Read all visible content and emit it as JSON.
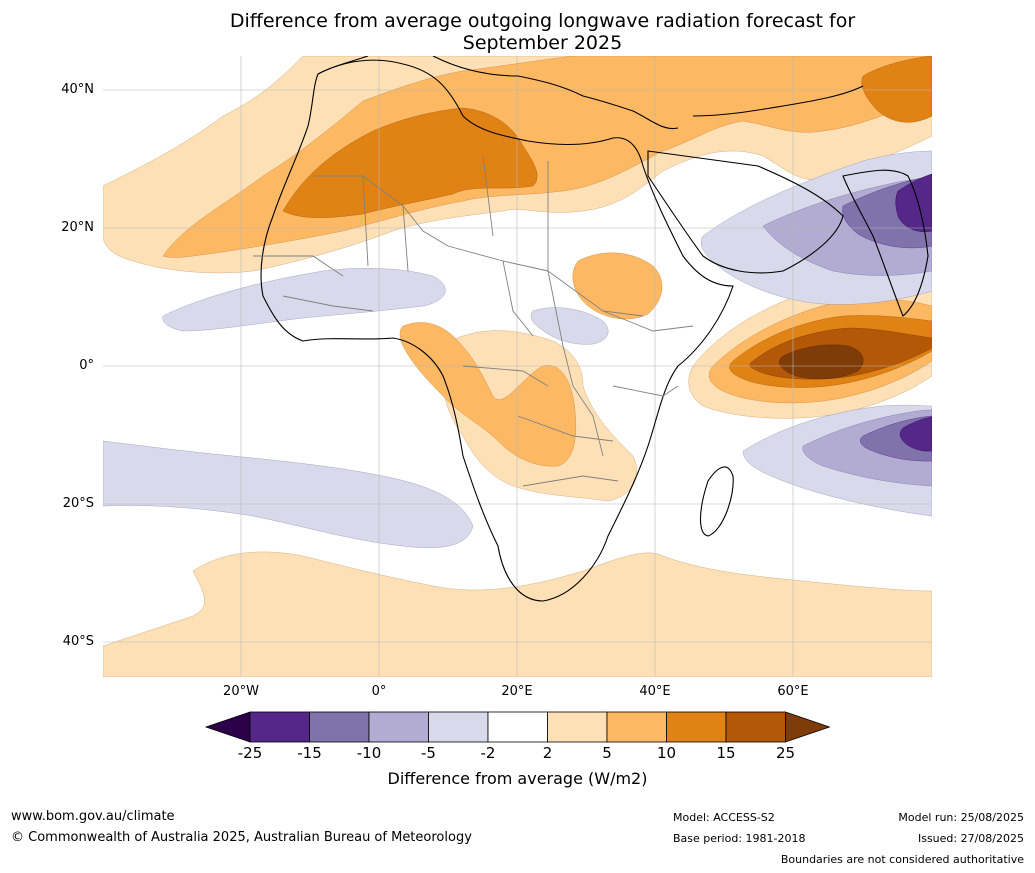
{
  "title": {
    "line1": "Difference from average outgoing longwave radiation forecast for",
    "line2": "September 2025"
  },
  "axes": {
    "lat_labels": [
      "40°N",
      "20°N",
      "0°",
      "20°S",
      "40°S"
    ],
    "lon_labels": [
      "20°W",
      "0°",
      "20°E",
      "40°E",
      "60°E"
    ]
  },
  "colorbar": {
    "ticks": [
      "-25",
      "-15",
      "-10",
      "-5",
      "-2",
      "2",
      "5",
      "10",
      "15",
      "25"
    ],
    "label": "Difference from average (W/m2)",
    "colors": {
      "below_-25": "#2d004b",
      "-25_to_-15": "#542788",
      "-15_to_-10": "#8073ac",
      "-10_to_-5": "#b2abd2",
      "-5_to_-2": "#d8daeb",
      "-2_to_2": "#ffffff",
      "2_to_5": "#fee0b6",
      "5_to_10": "#fdb863",
      "10_to_15": "#e08214",
      "15_to_25": "#b35806",
      "above_25": "#7f3b08"
    }
  },
  "footer": {
    "url": "www.bom.gov.au/climate",
    "copyright": "© Commonwealth of Australia 2025, Australian Bureau of Meteorology",
    "model": "Model: ACCESS-S2",
    "base_period": "Base period: 1981-2018",
    "model_run": "Model run: 25/08/2025",
    "issued": "Issued: 27/08/2025",
    "disclaimer": "Boundaries are not considered authoritative"
  }
}
